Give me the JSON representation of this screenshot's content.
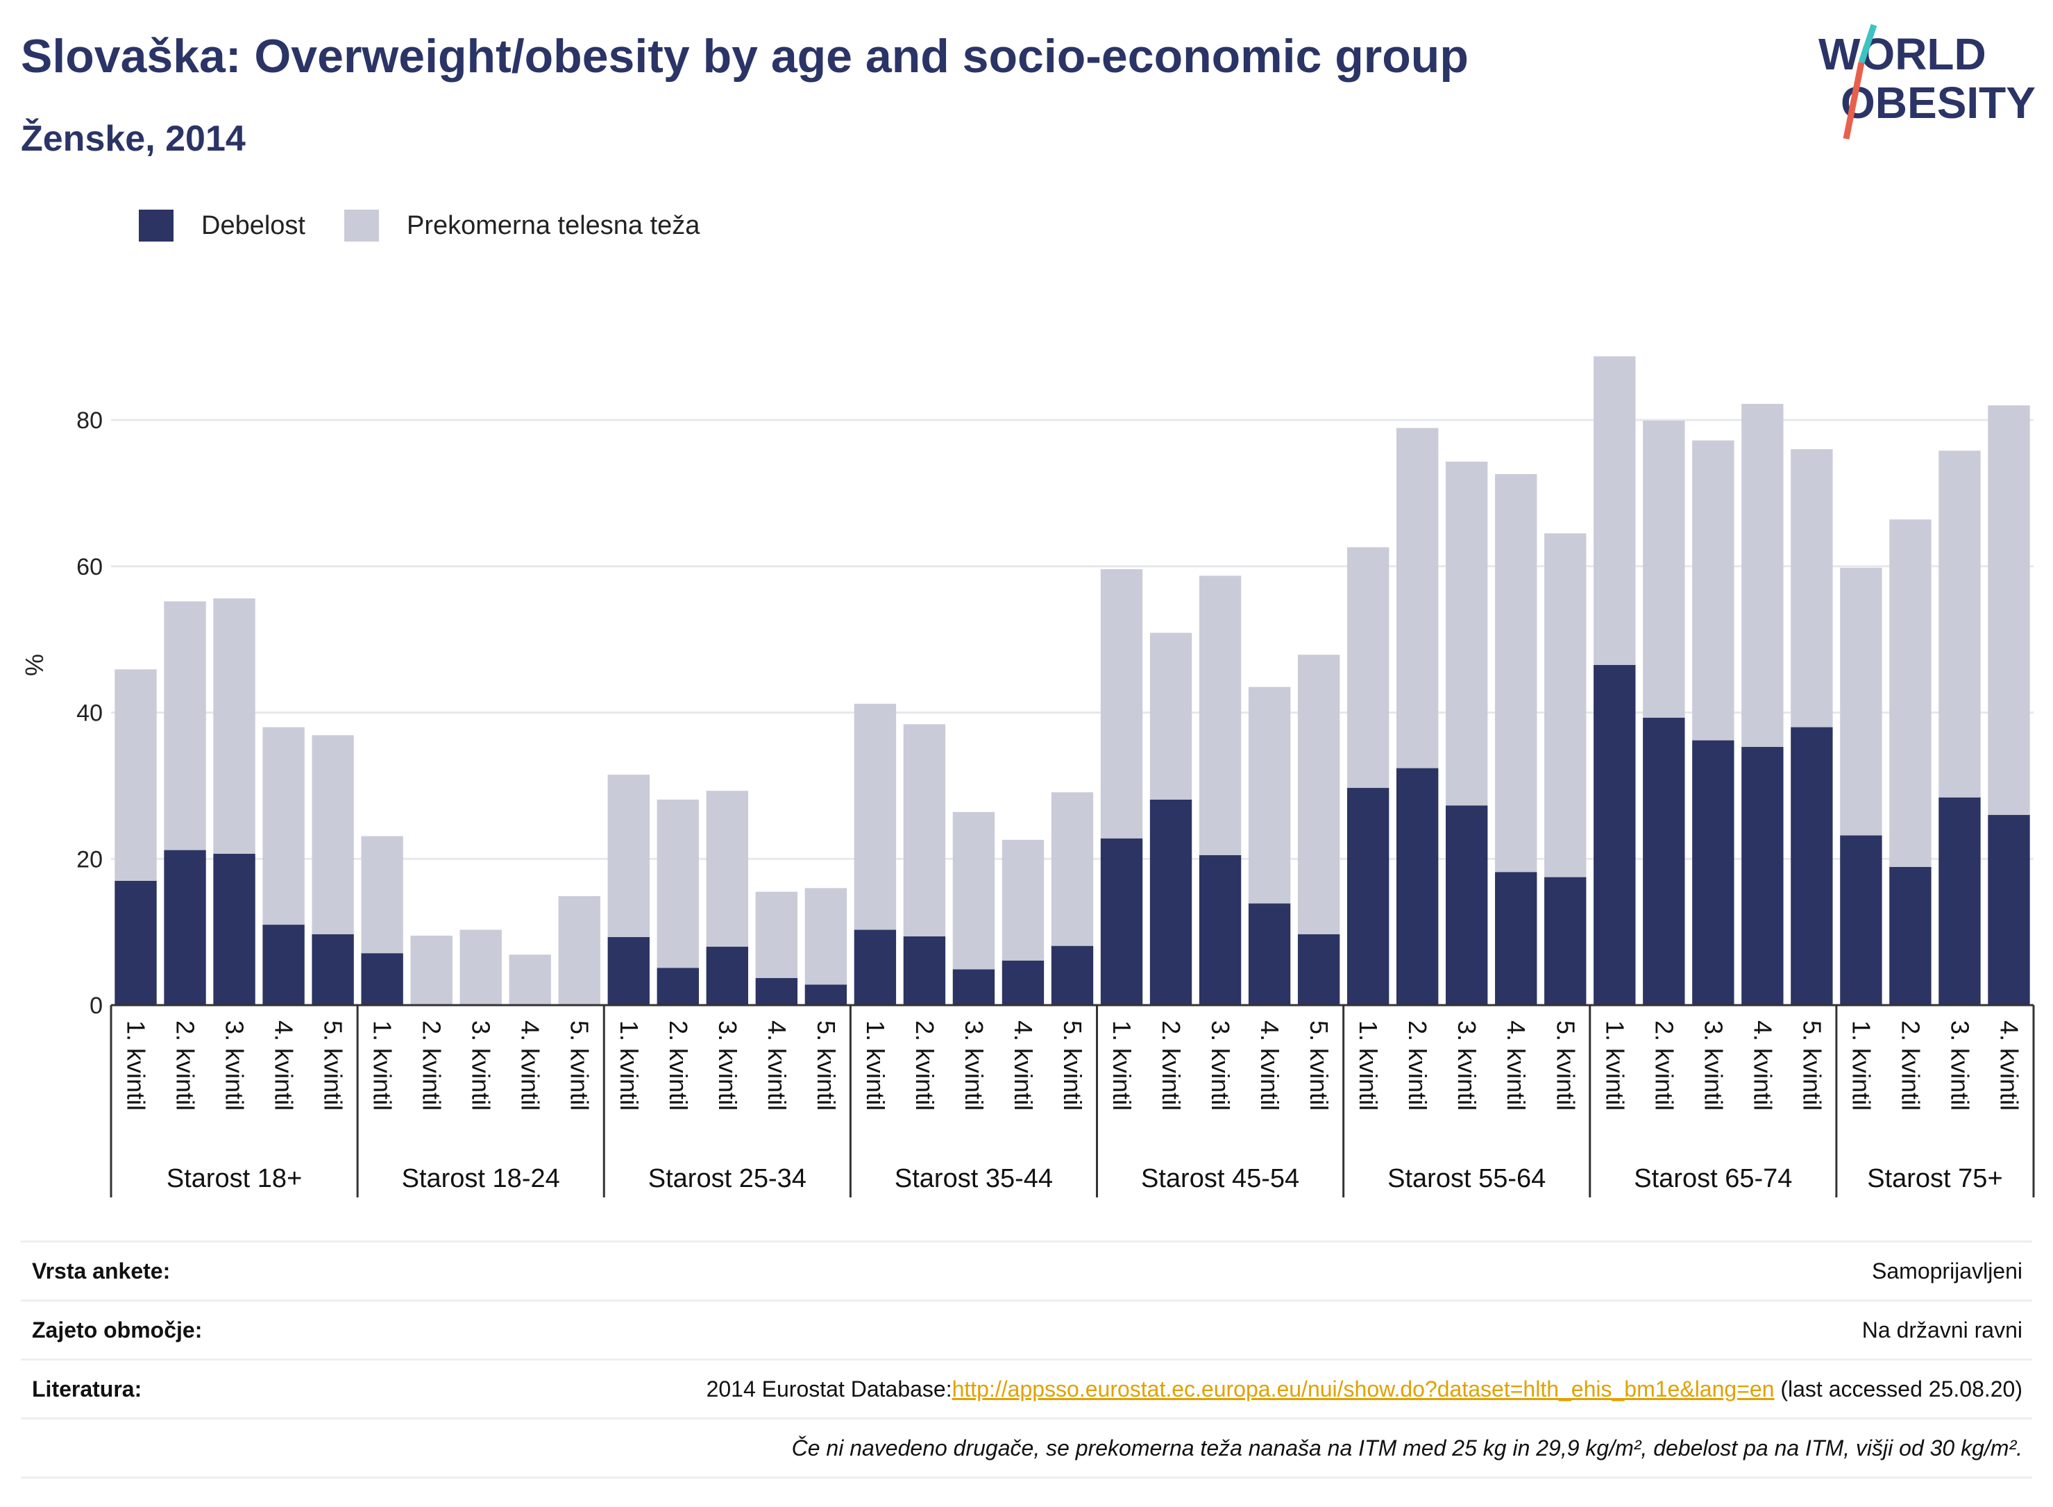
{
  "title": "Slovaška: Overweight/obesity by age and socio-economic group",
  "subtitle": "Ženske, 2014",
  "logo": {
    "line1": "WORLD",
    "line2": "OBESITY",
    "slash_colors": [
      "#3cc3c3",
      "#e8604c"
    ]
  },
  "legend": [
    {
      "label": "Debelost",
      "color": "#2b3463"
    },
    {
      "label": "Prekomerna telesna teža",
      "color": "#c9cbd8"
    }
  ],
  "chart_data": {
    "type": "bar",
    "stacked": true,
    "ylabel": "%",
    "ylim": [
      0,
      92
    ],
    "yticks": [
      0,
      20,
      40,
      60,
      80
    ],
    "grid": true,
    "legend_position": "top-left",
    "groups": [
      {
        "label": "Starost 18+",
        "categories": [
          "1. kvintil",
          "2. kvintil",
          "3. kvintil",
          "4. kvintil",
          "5. kvintil"
        ]
      },
      {
        "label": "Starost 18-24",
        "categories": [
          "1. kvintil",
          "2. kvintil",
          "3. kvintil",
          "4. kvintil",
          "5. kvintil"
        ]
      },
      {
        "label": "Starost 25-34",
        "categories": [
          "1. kvintil",
          "2. kvintil",
          "3. kvintil",
          "4. kvintil",
          "5. kvintil"
        ]
      },
      {
        "label": "Starost 35-44",
        "categories": [
          "1. kvintil",
          "2. kvintil",
          "3. kvintil",
          "4. kvintil",
          "5. kvintil"
        ]
      },
      {
        "label": "Starost 45-54",
        "categories": [
          "1. kvintil",
          "2. kvintil",
          "3. kvintil",
          "4. kvintil",
          "5. kvintil"
        ]
      },
      {
        "label": "Starost 55-64",
        "categories": [
          "1. kvintil",
          "2. kvintil",
          "3. kvintil",
          "4. kvintil",
          "5. kvintil"
        ]
      },
      {
        "label": "Starost 65-74",
        "categories": [
          "1. kvintil",
          "2. kvintil",
          "3. kvintil",
          "4. kvintil",
          "5. kvintil"
        ]
      },
      {
        "label": "Starost 75+",
        "categories": [
          "1. kvintil",
          "2. kvintil",
          "3. kvintil",
          "4. kvintil"
        ]
      }
    ],
    "series": [
      {
        "name": "Debelost",
        "color": "#2b3463",
        "values": [
          17.0,
          21.2,
          20.7,
          11.0,
          9.7,
          7.1,
          0,
          0,
          0,
          0,
          9.3,
          5.1,
          8.0,
          3.7,
          2.8,
          10.3,
          9.4,
          4.9,
          6.1,
          8.1,
          22.8,
          28.1,
          20.5,
          13.9,
          9.7,
          29.7,
          32.4,
          27.3,
          18.2,
          17.5,
          46.5,
          39.3,
          36.2,
          35.3,
          38.0,
          23.2,
          18.9,
          28.4,
          26.0
        ]
      },
      {
        "name": "Prekomerna telesna teža",
        "color": "#c9cbd8",
        "values": [
          28.9,
          34.0,
          34.9,
          27.0,
          27.2,
          16.0,
          9.5,
          10.3,
          6.9,
          14.9,
          22.2,
          23.0,
          21.3,
          11.8,
          13.2,
          30.9,
          29.0,
          21.5,
          16.5,
          21.0,
          36.8,
          22.8,
          38.2,
          29.6,
          38.2,
          32.9,
          46.5,
          47.0,
          54.4,
          47.0,
          42.2,
          40.6,
          41.0,
          46.9,
          38.0,
          36.6,
          47.5,
          47.4,
          56.0
        ]
      }
    ]
  },
  "footer": {
    "survey_label": "Vrsta ankete:",
    "survey_value": "Samoprijavljeni",
    "coverage_label": "Zajeto območje:",
    "coverage_value": "Na državni ravni",
    "reference_label": "Literatura:",
    "reference_prefix": "2014 Eurostat Database:",
    "reference_link": "http://appsso.eurostat.ec.europa.eu/nui/show.do?dataset=hlth_ehis_bm1e&lang=en",
    "reference_suffix": " (last accessed 25.08.20)",
    "note": "Če ni navedeno drugače, se prekomerna teža nanaša na ITM med 25 kg in 29,9 kg/m², debelost pa na ITM, višji od 30 kg/m²."
  }
}
